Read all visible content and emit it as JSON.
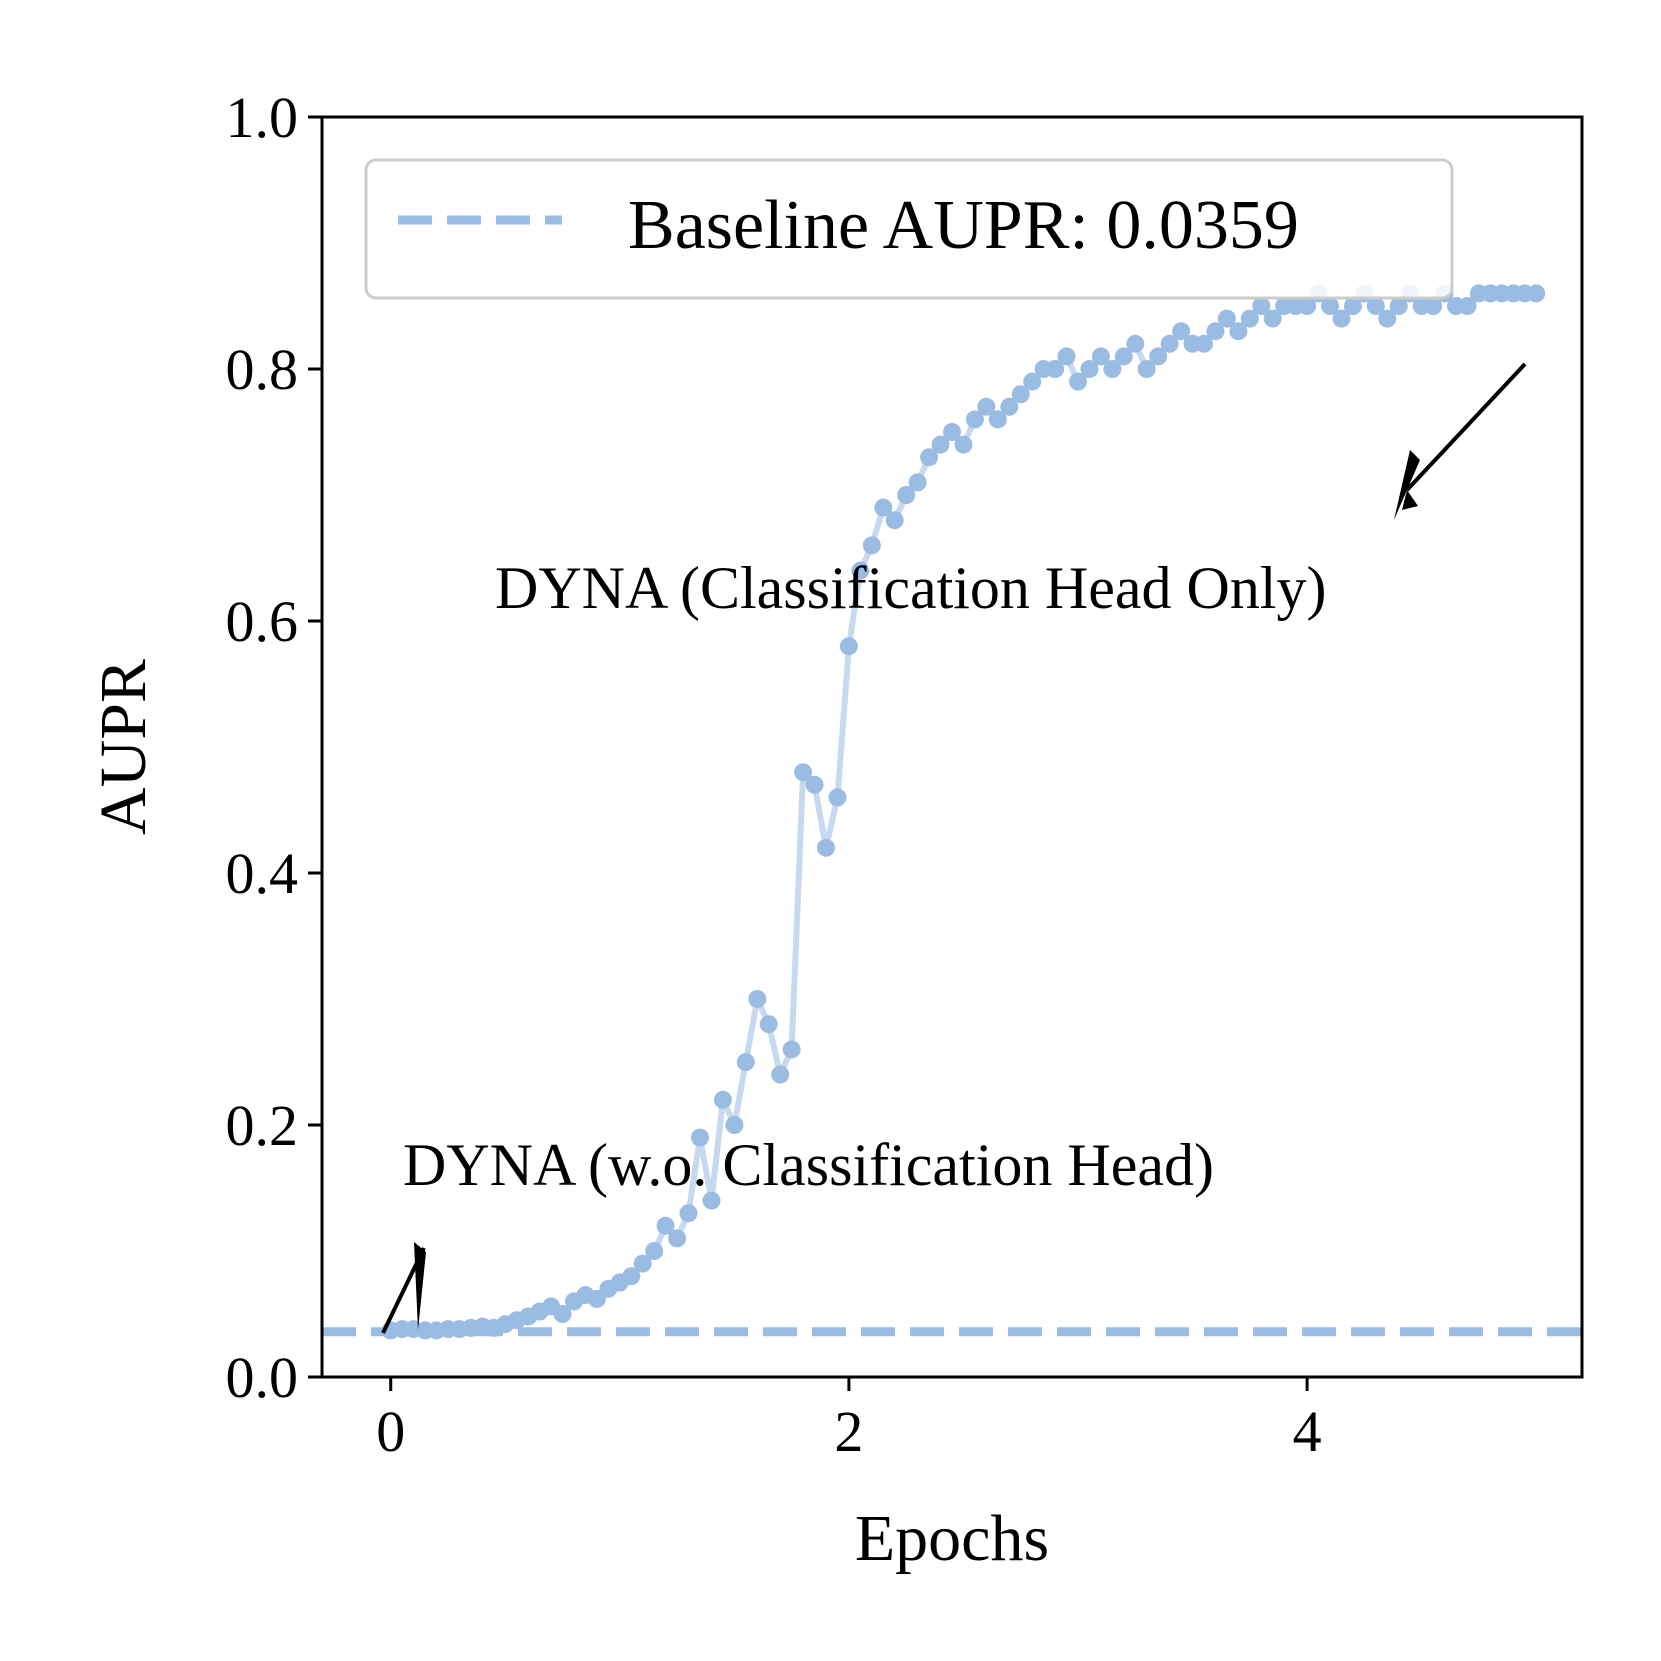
{
  "chart_data": {
    "type": "scatter",
    "xlabel": "Epochs",
    "ylabel": "AUPR",
    "xlim": [
      -0.3,
      5.2
    ],
    "ylim": [
      0.0,
      1.0
    ],
    "xticks": [
      0,
      2,
      4
    ],
    "yticks": [
      0.0,
      0.2,
      0.4,
      0.6,
      0.8,
      1.0
    ],
    "xtick_labels": [
      "0",
      "2",
      "4"
    ],
    "ytick_labels": [
      "0.0",
      "0.2",
      "0.4",
      "0.6",
      "0.8",
      "1.0"
    ],
    "grid": false,
    "legend_position": "top",
    "colors": {
      "series": "#9bbce2",
      "series_line": "#c7d9ef",
      "text": "#000000"
    },
    "baseline": {
      "label": "Baseline AUPR: 0.0359",
      "value": 0.0359
    },
    "annotations": [
      {
        "text": "DYNA (Classification Head Only)",
        "target": [
          4.5,
          0.69
        ],
        "text_anchor": [
          5.0,
          0.8
        ]
      },
      {
        "text": "DYNA (w.o. Classification Head)",
        "target": [
          0.0,
          0.025
        ],
        "text_anchor": [
          0.2,
          0.1
        ]
      }
    ],
    "series": [
      {
        "x": [
          0.0,
          0.05,
          0.1,
          0.15,
          0.2,
          0.25,
          0.3,
          0.35,
          0.4,
          0.45,
          0.5,
          0.55,
          0.6,
          0.65,
          0.7,
          0.75,
          0.8,
          0.85,
          0.9,
          0.95,
          1.0,
          1.05,
          1.1,
          1.15,
          1.2,
          1.25,
          1.3,
          1.35,
          1.4,
          1.45,
          1.5,
          1.55,
          1.6,
          1.65,
          1.7,
          1.75,
          1.8,
          1.85,
          1.9,
          1.95,
          2.0,
          2.05,
          2.1,
          2.15,
          2.2,
          2.25,
          2.3,
          2.35,
          2.4,
          2.45,
          2.5,
          2.55,
          2.6,
          2.65,
          2.7,
          2.75,
          2.8,
          2.85,
          2.9,
          2.95,
          3.0,
          3.05,
          3.1,
          3.15,
          3.2,
          3.25,
          3.3,
          3.35,
          3.4,
          3.45,
          3.5,
          3.55,
          3.6,
          3.65,
          3.7,
          3.75,
          3.8,
          3.85,
          3.9,
          3.95,
          4.0,
          4.05,
          4.1,
          4.15,
          4.2,
          4.25,
          4.3,
          4.35,
          4.4,
          4.45,
          4.5,
          4.55,
          4.6,
          4.65,
          4.7,
          4.75,
          4.8,
          4.85,
          4.9,
          4.95,
          5.0
        ],
        "values": [
          0.037,
          0.038,
          0.038,
          0.037,
          0.037,
          0.038,
          0.038,
          0.039,
          0.04,
          0.039,
          0.042,
          0.045,
          0.048,
          0.052,
          0.056,
          0.05,
          0.06,
          0.065,
          0.062,
          0.07,
          0.075,
          0.08,
          0.09,
          0.1,
          0.12,
          0.11,
          0.13,
          0.19,
          0.14,
          0.22,
          0.2,
          0.25,
          0.3,
          0.28,
          0.24,
          0.26,
          0.48,
          0.47,
          0.42,
          0.46,
          0.58,
          0.64,
          0.66,
          0.69,
          0.68,
          0.7,
          0.71,
          0.73,
          0.74,
          0.75,
          0.74,
          0.76,
          0.77,
          0.76,
          0.77,
          0.78,
          0.79,
          0.8,
          0.8,
          0.81,
          0.79,
          0.8,
          0.81,
          0.8,
          0.81,
          0.82,
          0.8,
          0.81,
          0.82,
          0.83,
          0.82,
          0.82,
          0.83,
          0.84,
          0.83,
          0.84,
          0.85,
          0.84,
          0.85,
          0.85,
          0.85,
          0.86,
          0.85,
          0.84,
          0.85,
          0.86,
          0.85,
          0.84,
          0.85,
          0.86,
          0.85,
          0.85,
          0.86,
          0.85,
          0.85,
          0.86,
          0.86,
          0.86,
          0.86,
          0.86,
          0.86
        ]
      }
    ]
  }
}
